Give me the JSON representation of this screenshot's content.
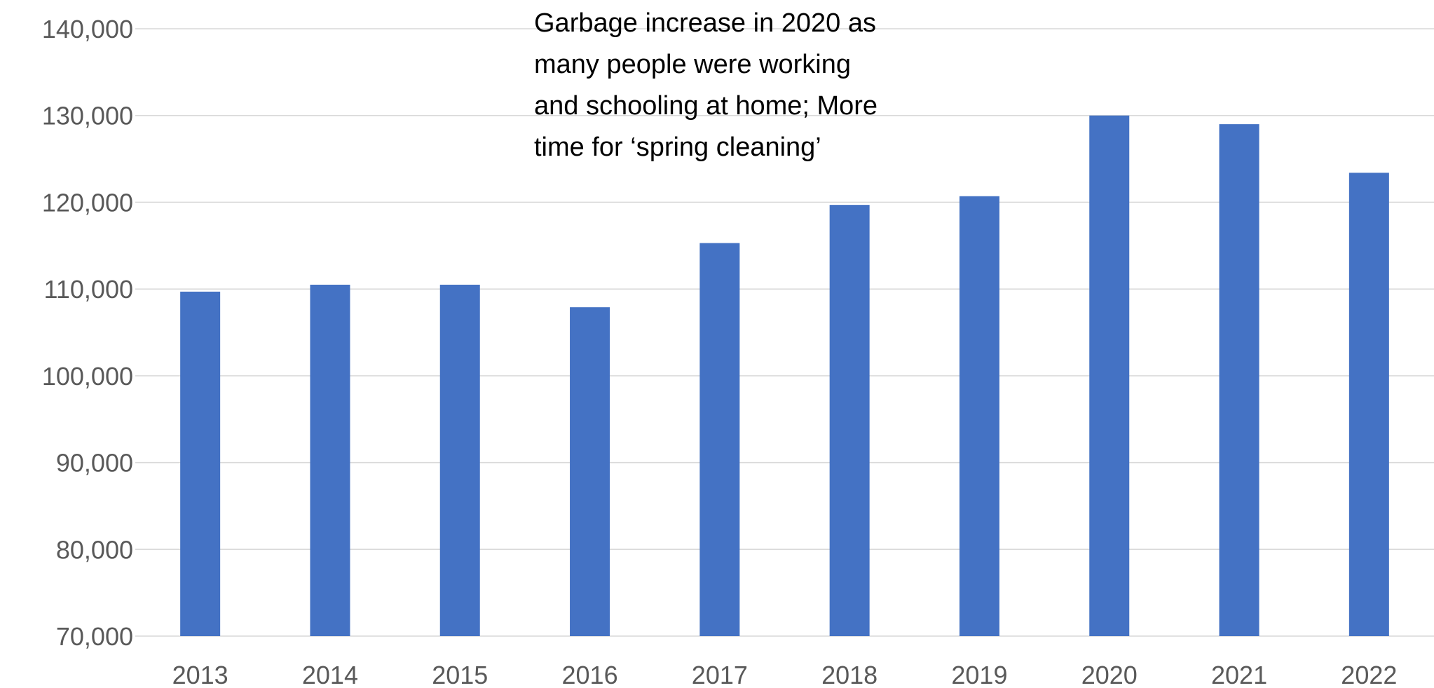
{
  "chart_data": {
    "type": "bar",
    "categories": [
      "2013",
      "2014",
      "2015",
      "2016",
      "2017",
      "2018",
      "2019",
      "2020",
      "2021",
      "2022"
    ],
    "series": [
      {
        "values": [
          109700,
          110500,
          110500,
          107900,
          115300,
          119700,
          120700,
          130000,
          129000,
          123400
        ]
      }
    ],
    "ylim": [
      70000,
      140000
    ],
    "yticks": [
      "70,000",
      "80,000",
      "90,000",
      "100,000",
      "110,000",
      "120,000",
      "130,000",
      "140,000"
    ],
    "grid": true,
    "annotation": [
      "Garbage increase in 2020 as",
      "many people were working",
      "and schooling at home; More",
      "time for ‘spring cleaning’"
    ],
    "colors": {
      "bar": "#4472C4",
      "grid": "#D9D9D9",
      "tick_text": "#595959"
    }
  }
}
